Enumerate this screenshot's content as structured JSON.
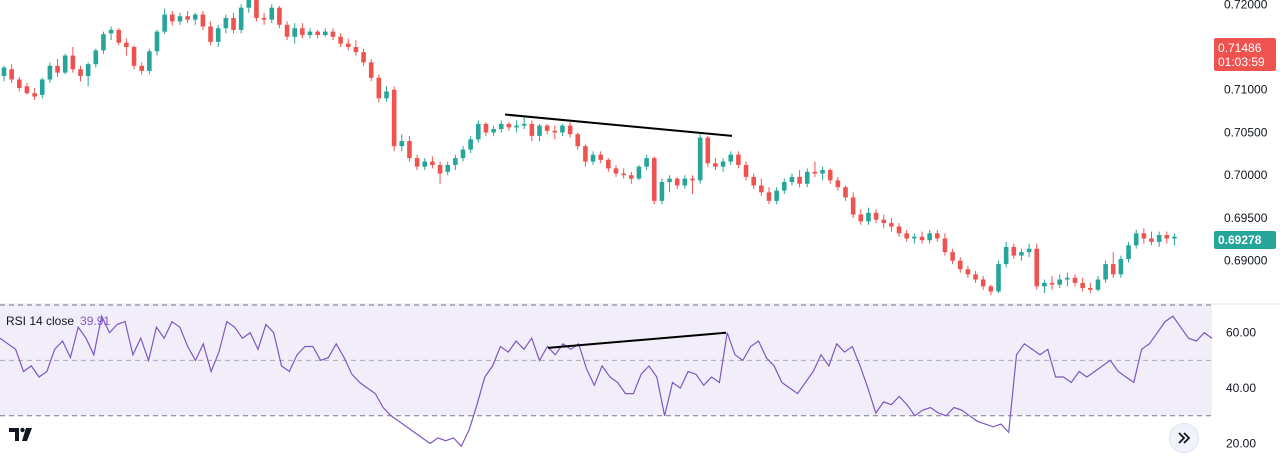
{
  "chart_data": [
    {
      "type": "candlestick",
      "series_name": "",
      "y_axis": {
        "ticks": [
          "0.72000",
          "0.71000",
          "0.70500",
          "0.70000",
          "0.69500",
          "0.69000"
        ],
        "ylim": [
          0.6854,
          0.7205
        ]
      },
      "price_badges": {
        "last_price": "0.71486",
        "countdown": "01:03:59",
        "current": "0.69278"
      },
      "candles": [
        [
          0.7116,
          0.7128,
          0.711,
          0.7126
        ],
        [
          0.7124,
          0.713,
          0.7108,
          0.7112
        ],
        [
          0.7112,
          0.7115,
          0.7098,
          0.7102
        ],
        [
          0.7104,
          0.7108,
          0.7094,
          0.7096
        ],
        [
          0.7096,
          0.7102,
          0.7088,
          0.7092
        ],
        [
          0.7094,
          0.7114,
          0.709,
          0.7112
        ],
        [
          0.7112,
          0.7132,
          0.7108,
          0.7128
        ],
        [
          0.7128,
          0.7136,
          0.7115,
          0.712
        ],
        [
          0.712,
          0.7142,
          0.7118,
          0.714
        ],
        [
          0.714,
          0.715,
          0.712,
          0.7124
        ],
        [
          0.7124,
          0.7128,
          0.711,
          0.7116
        ],
        [
          0.7116,
          0.7132,
          0.7104,
          0.713
        ],
        [
          0.713,
          0.7148,
          0.7126,
          0.7146
        ],
        [
          0.7146,
          0.7168,
          0.7142,
          0.7165
        ],
        [
          0.7166,
          0.7174,
          0.7158,
          0.717
        ],
        [
          0.717,
          0.7172,
          0.7152,
          0.7155
        ],
        [
          0.7155,
          0.716,
          0.714,
          0.715
        ],
        [
          0.715,
          0.7152,
          0.7124,
          0.7128
        ],
        [
          0.7128,
          0.7132,
          0.7118,
          0.7122
        ],
        [
          0.7122,
          0.7148,
          0.7118,
          0.7145
        ],
        [
          0.7145,
          0.717,
          0.714,
          0.7168
        ],
        [
          0.7168,
          0.7195,
          0.7165,
          0.7188
        ],
        [
          0.7188,
          0.7192,
          0.7175,
          0.718
        ],
        [
          0.718,
          0.719,
          0.7176,
          0.7186
        ],
        [
          0.7186,
          0.7192,
          0.7178,
          0.7182
        ],
        [
          0.7182,
          0.719,
          0.7176,
          0.7188
        ],
        [
          0.7188,
          0.7192,
          0.717,
          0.7174
        ],
        [
          0.7174,
          0.718,
          0.7152,
          0.7156
        ],
        [
          0.7156,
          0.7176,
          0.715,
          0.7172
        ],
        [
          0.7172,
          0.7188,
          0.7166,
          0.7184
        ],
        [
          0.7184,
          0.719,
          0.7166,
          0.717
        ],
        [
          0.717,
          0.72,
          0.7166,
          0.7196
        ],
        [
          0.7196,
          0.721,
          0.719,
          0.7205
        ],
        [
          0.7205,
          0.7208,
          0.718,
          0.7184
        ],
        [
          0.7184,
          0.719,
          0.7176,
          0.7182
        ],
        [
          0.7182,
          0.72,
          0.7178,
          0.7196
        ],
        [
          0.7196,
          0.7198,
          0.7172,
          0.7176
        ],
        [
          0.7176,
          0.718,
          0.7158,
          0.7162
        ],
        [
          0.7162,
          0.7178,
          0.7154,
          0.7172
        ],
        [
          0.7172,
          0.7178,
          0.716,
          0.7164
        ],
        [
          0.7164,
          0.7172,
          0.716,
          0.7168
        ],
        [
          0.7168,
          0.717,
          0.716,
          0.7164
        ],
        [
          0.7164,
          0.7172,
          0.7162,
          0.7168
        ],
        [
          0.7168,
          0.7172,
          0.7158,
          0.7162
        ],
        [
          0.7162,
          0.7166,
          0.715,
          0.7154
        ],
        [
          0.7154,
          0.716,
          0.7146,
          0.715
        ],
        [
          0.715,
          0.7158,
          0.714,
          0.7144
        ],
        [
          0.7144,
          0.7148,
          0.7128,
          0.7132
        ],
        [
          0.7132,
          0.7136,
          0.711,
          0.7114
        ],
        [
          0.7114,
          0.7118,
          0.7085,
          0.709
        ],
        [
          0.709,
          0.7104,
          0.7086,
          0.7098
        ],
        [
          0.71,
          0.7104,
          0.7028,
          0.7034
        ],
        [
          0.7034,
          0.7048,
          0.7028,
          0.704
        ],
        [
          0.704,
          0.7046,
          0.7016,
          0.702
        ],
        [
          0.702,
          0.7024,
          0.7006,
          0.701
        ],
        [
          0.701,
          0.702,
          0.7006,
          0.7016
        ],
        [
          0.7016,
          0.7022,
          0.7008,
          0.7012
        ],
        [
          0.7012,
          0.7016,
          0.699,
          0.7002
        ],
        [
          0.7004,
          0.7016,
          0.7,
          0.7012
        ],
        [
          0.7012,
          0.7024,
          0.7006,
          0.702
        ],
        [
          0.702,
          0.7034,
          0.7016,
          0.703
        ],
        [
          0.703,
          0.7046,
          0.7026,
          0.7042
        ],
        [
          0.7042,
          0.7064,
          0.7038,
          0.706
        ],
        [
          0.706,
          0.7062,
          0.7046,
          0.705
        ],
        [
          0.705,
          0.7058,
          0.7046,
          0.7054
        ],
        [
          0.7054,
          0.7064,
          0.705,
          0.706
        ],
        [
          0.706,
          0.7062,
          0.7052,
          0.7056
        ],
        [
          0.7056,
          0.7064,
          0.705,
          0.7058
        ],
        [
          0.7058,
          0.707,
          0.7054,
          0.706
        ],
        [
          0.706,
          0.7064,
          0.704,
          0.7046
        ],
        [
          0.7046,
          0.706,
          0.704,
          0.7058
        ],
        [
          0.7058,
          0.706,
          0.7048,
          0.7052
        ],
        [
          0.7052,
          0.7058,
          0.7042,
          0.705
        ],
        [
          0.705,
          0.706,
          0.7046,
          0.7058
        ],
        [
          0.7058,
          0.7062,
          0.7044,
          0.7048
        ],
        [
          0.7048,
          0.705,
          0.703,
          0.7034
        ],
        [
          0.7034,
          0.7036,
          0.701,
          0.7016
        ],
        [
          0.7016,
          0.7028,
          0.7012,
          0.7024
        ],
        [
          0.7024,
          0.7028,
          0.7014,
          0.7018
        ],
        [
          0.7018,
          0.702,
          0.7004,
          0.7008
        ],
        [
          0.7008,
          0.7012,
          0.6998,
          0.7002
        ],
        [
          0.7002,
          0.7008,
          0.6996,
          0.7
        ],
        [
          0.7,
          0.7004,
          0.699,
          0.6996
        ],
        [
          0.6996,
          0.7012,
          0.6994,
          0.701
        ],
        [
          0.701,
          0.7024,
          0.7006,
          0.702
        ],
        [
          0.702,
          0.7022,
          0.6966,
          0.697
        ],
        [
          0.697,
          0.6996,
          0.6966,
          0.6992
        ],
        [
          0.6992,
          0.7,
          0.698,
          0.6996
        ],
        [
          0.6996,
          0.6998,
          0.6984,
          0.6988
        ],
        [
          0.6988,
          0.7,
          0.6984,
          0.6996
        ],
        [
          0.6996,
          0.7,
          0.6978,
          0.6994
        ],
        [
          0.6994,
          0.7048,
          0.699,
          0.7044
        ],
        [
          0.7044,
          0.7046,
          0.701,
          0.7014
        ],
        [
          0.7014,
          0.702,
          0.7006,
          0.701
        ],
        [
          0.701,
          0.702,
          0.7004,
          0.7016
        ],
        [
          0.7016,
          0.7028,
          0.7012,
          0.7024
        ],
        [
          0.7024,
          0.7028,
          0.7008,
          0.7012
        ],
        [
          0.7012,
          0.7016,
          0.6994,
          0.6998
        ],
        [
          0.6998,
          0.7002,
          0.6984,
          0.6988
        ],
        [
          0.6988,
          0.6996,
          0.6976,
          0.698
        ],
        [
          0.698,
          0.6986,
          0.6966,
          0.697
        ],
        [
          0.697,
          0.6986,
          0.6966,
          0.6982
        ],
        [
          0.6982,
          0.6996,
          0.6978,
          0.6992
        ],
        [
          0.6992,
          0.7002,
          0.6988,
          0.6998
        ],
        [
          0.6998,
          0.7006,
          0.6986,
          0.699
        ],
        [
          0.699,
          0.7008,
          0.6986,
          0.7004
        ],
        [
          0.7004,
          0.7016,
          0.6998,
          0.7002
        ],
        [
          0.7002,
          0.701,
          0.6994,
          0.7006
        ],
        [
          0.7006,
          0.7008,
          0.699,
          0.6994
        ],
        [
          0.6994,
          0.6998,
          0.6982,
          0.6986
        ],
        [
          0.6986,
          0.6988,
          0.697,
          0.6974
        ],
        [
          0.6974,
          0.698,
          0.695,
          0.6954
        ],
        [
          0.6954,
          0.696,
          0.6942,
          0.6946
        ],
        [
          0.6946,
          0.6962,
          0.6942,
          0.6956
        ],
        [
          0.6956,
          0.696,
          0.6944,
          0.6948
        ],
        [
          0.6948,
          0.6954,
          0.6938,
          0.6944
        ],
        [
          0.6944,
          0.695,
          0.6934,
          0.694
        ],
        [
          0.694,
          0.6944,
          0.6928,
          0.6932
        ],
        [
          0.6932,
          0.6936,
          0.6922,
          0.6926
        ],
        [
          0.6926,
          0.6932,
          0.692,
          0.6928
        ],
        [
          0.6928,
          0.6934,
          0.692,
          0.6924
        ],
        [
          0.6924,
          0.6936,
          0.692,
          0.6932
        ],
        [
          0.6932,
          0.6936,
          0.6922,
          0.6926
        ],
        [
          0.6926,
          0.6932,
          0.6906,
          0.691
        ],
        [
          0.691,
          0.6914,
          0.6896,
          0.69
        ],
        [
          0.69,
          0.6904,
          0.6886,
          0.689
        ],
        [
          0.689,
          0.6894,
          0.688,
          0.6884
        ],
        [
          0.6884,
          0.6888,
          0.6874,
          0.6878
        ],
        [
          0.6878,
          0.6882,
          0.6866,
          0.687
        ],
        [
          0.687,
          0.6872,
          0.686,
          0.6864
        ],
        [
          0.6864,
          0.69,
          0.6862,
          0.6896
        ],
        [
          0.6896,
          0.6922,
          0.6892,
          0.6916
        ],
        [
          0.6916,
          0.692,
          0.6902,
          0.6906
        ],
        [
          0.6906,
          0.6914,
          0.69,
          0.691
        ],
        [
          0.691,
          0.692,
          0.6904,
          0.6914
        ],
        [
          0.6914,
          0.692,
          0.6866,
          0.687
        ],
        [
          0.687,
          0.6878,
          0.6862,
          0.6874
        ],
        [
          0.6874,
          0.6882,
          0.6866,
          0.6872
        ],
        [
          0.6872,
          0.6884,
          0.6868,
          0.6878
        ],
        [
          0.6878,
          0.6886,
          0.687,
          0.688
        ],
        [
          0.688,
          0.6884,
          0.687,
          0.6874
        ],
        [
          0.6874,
          0.688,
          0.6864,
          0.6868
        ],
        [
          0.6868,
          0.6874,
          0.6862,
          0.6866
        ],
        [
          0.6866,
          0.6882,
          0.6864,
          0.6878
        ],
        [
          0.6878,
          0.69,
          0.6874,
          0.6896
        ],
        [
          0.6896,
          0.691,
          0.688,
          0.6884
        ],
        [
          0.6884,
          0.6906,
          0.688,
          0.6902
        ],
        [
          0.6902,
          0.6922,
          0.6898,
          0.6918
        ],
        [
          0.6918,
          0.6936,
          0.6914,
          0.6932
        ],
        [
          0.6932,
          0.6938,
          0.692,
          0.6926
        ],
        [
          0.6926,
          0.6934,
          0.6918,
          0.6922
        ],
        [
          0.6922,
          0.6934,
          0.6916,
          0.693
        ],
        [
          0.693,
          0.6934,
          0.692,
          0.6926
        ],
        [
          0.6926,
          0.6932,
          0.6918,
          0.6928
        ]
      ],
      "trendline": {
        "from": [
          0,
          0.7071
        ],
        "to": [
          93,
          0.7046
        ]
      }
    },
    {
      "type": "line",
      "legend": {
        "label": "RSI 14 close",
        "value": "39.91"
      },
      "y_axis": {
        "ticks": [
          "60.00",
          "40.00",
          "20.00"
        ],
        "ylim": [
          18,
          70
        ]
      },
      "band": {
        "upper": 70,
        "middle": 50,
        "lower": 30
      },
      "values": [
        58,
        56,
        54,
        46,
        48,
        44,
        46,
        54,
        57,
        51,
        62,
        58,
        52,
        66,
        60,
        63,
        64,
        52,
        58,
        50,
        62,
        58,
        64,
        62,
        55,
        50,
        56,
        46,
        53,
        64,
        62,
        58,
        60,
        54,
        63,
        60,
        48,
        46,
        52,
        55,
        55,
        50,
        51,
        56,
        51,
        45,
        42,
        40,
        38,
        33,
        30,
        28,
        26,
        24,
        22,
        20,
        22,
        21,
        22,
        19,
        25,
        34,
        44,
        48,
        55,
        53,
        57,
        54,
        58,
        50,
        55,
        52,
        56,
        54,
        56,
        47,
        41,
        48,
        44,
        42,
        38,
        38,
        45,
        48,
        44,
        30,
        42,
        40,
        46,
        45,
        41,
        44,
        42,
        60,
        52,
        50,
        55,
        57,
        51,
        48,
        42,
        40,
        38,
        42,
        46,
        52,
        48,
        56,
        53,
        55,
        48,
        40,
        31,
        35,
        34,
        37,
        34,
        30,
        32,
        33,
        31,
        30,
        33,
        32,
        30,
        28,
        27,
        26,
        27,
        24,
        52,
        56,
        54,
        52,
        54,
        44,
        44,
        42,
        46,
        44,
        46,
        48,
        50,
        46,
        44,
        42,
        54,
        56,
        60,
        64,
        66,
        62,
        58,
        57,
        60,
        58
      ],
      "trendline": {
        "from": [
          61,
          54.5
        ],
        "to": [
          93,
          60
        ]
      }
    }
  ]
}
